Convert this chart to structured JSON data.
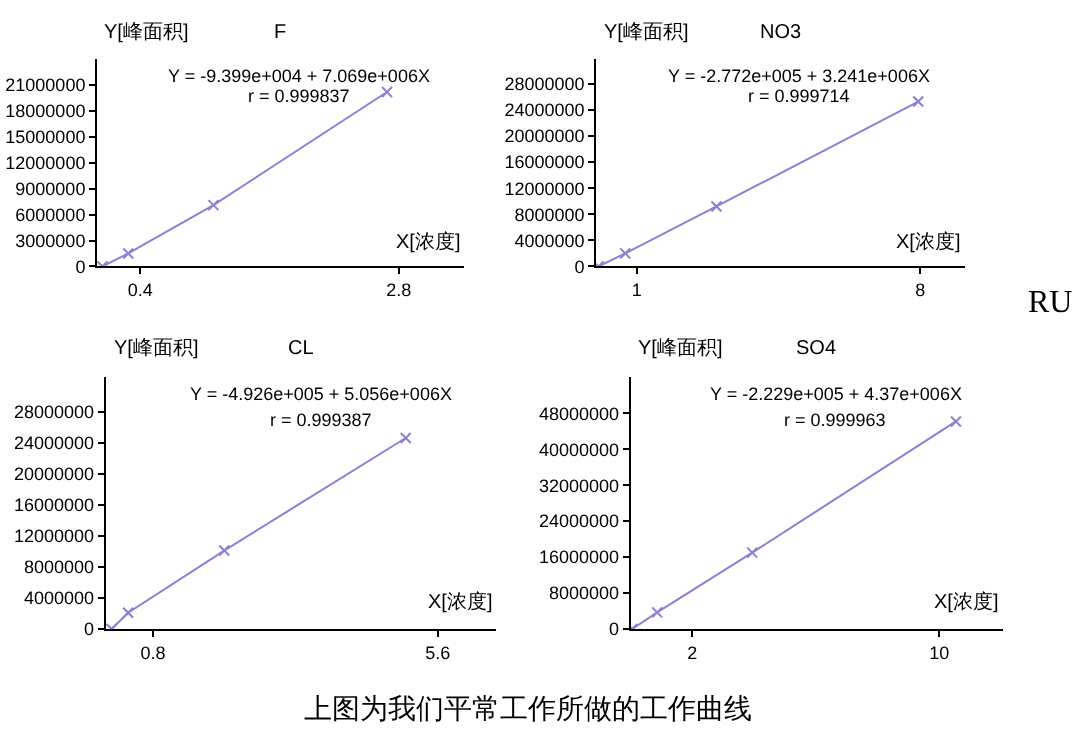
{
  "chart_data": [
    {
      "type": "line",
      "title": "F",
      "xlabel": "X[浓度]",
      "ylabel": "Y[峰面积]",
      "annotations": [
        "Y = -9.399e+004 + 7.069e+006X",
        "r = 0.999837"
      ],
      "marker": "cross",
      "x": [
        0.05,
        0.29,
        1.08,
        2.69
      ],
      "series": [
        {
          "color": "#8b7fd8",
          "values": [
            0,
            1500000,
            7100000,
            20200000
          ]
        }
      ],
      "xlim": [
        0,
        3.4
      ],
      "xticks": [
        0.4,
        2.8
      ],
      "ylim": [
        0,
        24000000
      ],
      "yticks": [
        0,
        3000000,
        6000000,
        9000000,
        12000000,
        15000000,
        18000000,
        21000000
      ]
    },
    {
      "type": "line",
      "title": "NO3",
      "xlabel": "X[浓度]",
      "ylabel": "Y[峰面积]",
      "annotations": [
        "Y = -2.772e+005 + 3.241e+006X",
        "r = 0.999714",
        "RU"
      ],
      "marker": "cross",
      "x": [
        0.06,
        0.72,
        2.97,
        7.95
      ],
      "series": [
        {
          "color": "#8b7fd8",
          "values": [
            0,
            2000000,
            9200000,
            25300000
          ]
        }
      ],
      "xlim": [
        0,
        9.1
      ],
      "xticks": [
        1,
        8
      ],
      "ylim": [
        0,
        31800000
      ],
      "yticks": [
        0,
        4000000,
        8000000,
        12000000,
        16000000,
        20000000,
        24000000,
        28000000
      ]
    },
    {
      "type": "line",
      "title": "CL",
      "xlabel": "X[浓度]",
      "ylabel": "Y[峰面积]",
      "annotations": [
        "Y = -4.926e+005 + 5.056e+006X",
        "r = 0.999387"
      ],
      "marker": "cross",
      "x": [
        0.1,
        0.38,
        2.0,
        5.06
      ],
      "series": [
        {
          "color": "#8b7fd8",
          "values": [
            0,
            2100000,
            10100000,
            24600000
          ]
        }
      ],
      "xlim": [
        0,
        6.58
      ],
      "xticks": [
        0.8,
        5.6
      ],
      "ylim": [
        0,
        32400000
      ],
      "yticks": [
        0,
        4000000,
        8000000,
        12000000,
        16000000,
        20000000,
        24000000,
        28000000
      ]
    },
    {
      "type": "line",
      "title": "SO4",
      "xlabel": "X[浓度]",
      "ylabel": "Y[峰面积]",
      "annotations": [
        "Y = -2.229e+005 + 4.37e+006X",
        "r = 0.999963",
        "上图为我们平常工作所做的工作曲线"
      ],
      "marker": "cross",
      "x": [
        0.05,
        0.86,
        3.94,
        10.54
      ],
      "series": [
        {
          "color": "#8b7fd8",
          "values": [
            0,
            3700000,
            17000000,
            46200000
          ]
        }
      ],
      "xlim": [
        0,
        12.05
      ],
      "xticks": [
        2,
        10
      ],
      "ylim": [
        0,
        56000000
      ],
      "yticks": [
        0,
        8000000,
        16000000,
        24000000,
        32000000,
        40000000,
        48000000
      ]
    }
  ]
}
